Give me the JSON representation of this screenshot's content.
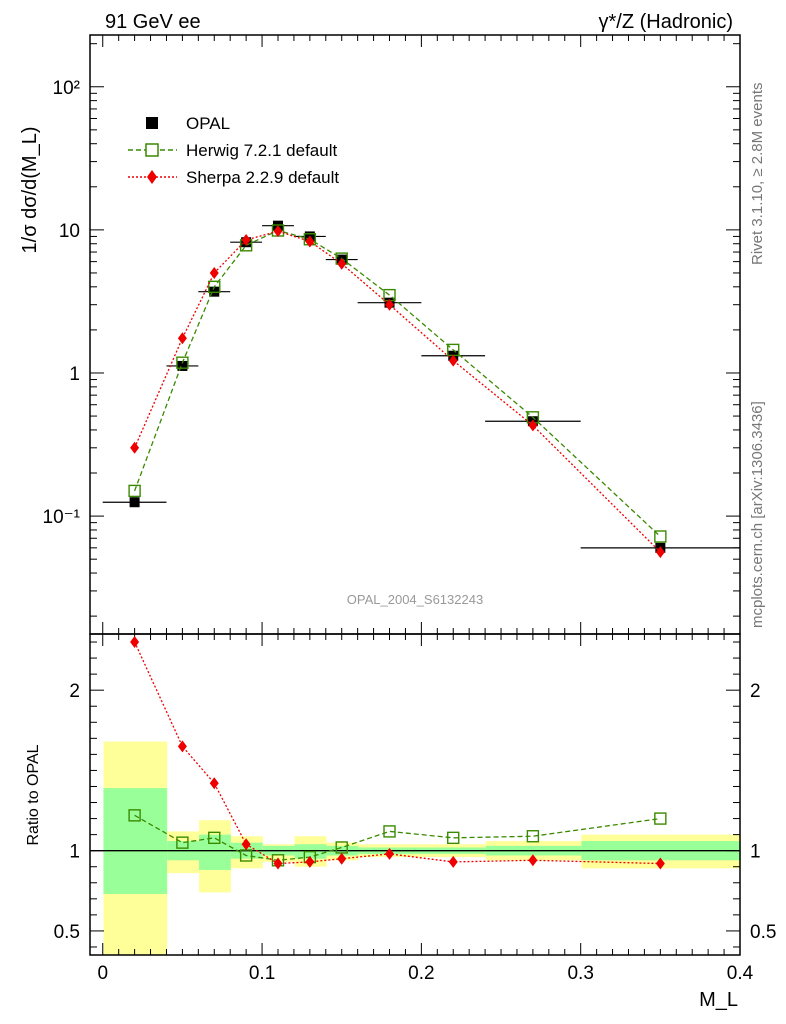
{
  "header": {
    "left": "91 GeV ee",
    "right": "γ*/Z (Hadronic)"
  },
  "side_labels": {
    "rivet": "Rivet 3.1.10, ≥ 2.8M events",
    "mcplots": "mcplots.cern.ch [arXiv:1306.3436]"
  },
  "watermark": "OPAL_2004_S6132243",
  "colors": {
    "data": "#000000",
    "herwig": "#3a8a00",
    "sherpa": "#ee0000",
    "band_inner": "#99ff99",
    "band_outer": "#ffff99"
  },
  "chart_data": [
    {
      "type": "line",
      "name": "main",
      "yscale": "log",
      "ylabel": "1/σ dσ/d(M_L)",
      "ylim": [
        0.015,
        230
      ],
      "xlim": [
        -0.008,
        0.4
      ],
      "ytick_labels": [
        "10⁻¹",
        "1",
        "10",
        "10²"
      ],
      "legend_position": "top-left",
      "legend": [
        {
          "key": "data",
          "label": "OPAL"
        },
        {
          "key": "herwig",
          "label": "Herwig 7.2.1 default"
        },
        {
          "key": "sherpa",
          "label": "Sherpa 2.2.9 default"
        }
      ],
      "data": {
        "name": "OPAL",
        "x": [
          0.02,
          0.05,
          0.07,
          0.09,
          0.11,
          0.13,
          0.15,
          0.18,
          0.22,
          0.27,
          0.35
        ],
        "xerr": [
          0.02,
          0.01,
          0.01,
          0.01,
          0.01,
          0.01,
          0.01,
          0.02,
          0.02,
          0.03,
          0.05
        ],
        "y": [
          0.125,
          1.12,
          3.7,
          8.2,
          10.7,
          9.0,
          6.2,
          3.1,
          1.32,
          0.46,
          0.06
        ]
      },
      "series": [
        {
          "name": "Herwig 7.2.1 default",
          "x": [
            0.02,
            0.05,
            0.07,
            0.09,
            0.11,
            0.13,
            0.15,
            0.18,
            0.22,
            0.27,
            0.35
          ],
          "y": [
            0.15,
            1.18,
            4.0,
            7.8,
            9.9,
            8.6,
            6.3,
            3.5,
            1.45,
            0.49,
            0.072
          ]
        },
        {
          "name": "Sherpa 2.2.9 default",
          "x": [
            0.02,
            0.05,
            0.07,
            0.09,
            0.11,
            0.13,
            0.15,
            0.18,
            0.22,
            0.27,
            0.35
          ],
          "y": [
            0.3,
            1.75,
            5.0,
            8.5,
            9.8,
            8.3,
            5.8,
            3.0,
            1.22,
            0.43,
            0.056
          ]
        }
      ]
    },
    {
      "type": "line",
      "name": "ratio",
      "ylabel": "Ratio to OPAL",
      "xlabel": "M_L",
      "ylim": [
        0.35,
        2.35
      ],
      "xlim": [
        -0.008,
        0.4
      ],
      "yticks": [
        0.5,
        1,
        2
      ],
      "xticks": [
        0,
        0.1,
        0.2,
        0.3,
        0.4
      ],
      "bands": [
        {
          "x0": 0.0,
          "x1": 0.04,
          "inner": [
            0.73,
            1.39
          ],
          "outer": [
            0.35,
            1.68
          ]
        },
        {
          "x0": 0.04,
          "x1": 0.06,
          "inner": [
            0.94,
            1.06
          ],
          "outer": [
            0.86,
            1.12
          ]
        },
        {
          "x0": 0.06,
          "x1": 0.08,
          "inner": [
            0.88,
            1.1
          ],
          "outer": [
            0.74,
            1.19
          ]
        },
        {
          "x0": 0.08,
          "x1": 0.1,
          "inner": [
            0.95,
            1.05
          ],
          "outer": [
            0.89,
            1.09
          ]
        },
        {
          "x0": 0.1,
          "x1": 0.12,
          "inner": [
            0.97,
            1.03
          ],
          "outer": [
            0.93,
            1.04
          ]
        },
        {
          "x0": 0.12,
          "x1": 0.14,
          "inner": [
            0.95,
            1.04
          ],
          "outer": [
            0.9,
            1.09
          ]
        },
        {
          "x0": 0.14,
          "x1": 0.16,
          "inner": [
            0.97,
            1.03
          ],
          "outer": [
            0.94,
            1.05
          ]
        },
        {
          "x0": 0.16,
          "x1": 0.2,
          "inner": [
            0.98,
            1.02
          ],
          "outer": [
            0.96,
            1.04
          ]
        },
        {
          "x0": 0.2,
          "x1": 0.24,
          "inner": [
            0.98,
            1.02
          ],
          "outer": [
            0.96,
            1.04
          ]
        },
        {
          "x0": 0.24,
          "x1": 0.3,
          "inner": [
            0.97,
            1.03
          ],
          "outer": [
            0.94,
            1.06
          ]
        },
        {
          "x0": 0.3,
          "x1": 0.4,
          "inner": [
            0.94,
            1.06
          ],
          "outer": [
            0.89,
            1.1
          ]
        }
      ],
      "series": [
        {
          "name": "Herwig 7.2.1 default",
          "x": [
            0.02,
            0.05,
            0.07,
            0.09,
            0.11,
            0.13,
            0.15,
            0.18,
            0.22,
            0.27,
            0.35
          ],
          "y": [
            1.22,
            1.05,
            1.08,
            0.97,
            0.94,
            0.96,
            1.02,
            1.12,
            1.08,
            1.09,
            1.2
          ]
        },
        {
          "name": "Sherpa 2.2.9 default",
          "x": [
            0.02,
            0.05,
            0.07,
            0.09,
            0.11,
            0.13,
            0.15,
            0.18,
            0.22,
            0.27,
            0.35
          ],
          "y": [
            2.3,
            1.65,
            1.42,
            1.04,
            0.92,
            0.93,
            0.95,
            0.98,
            0.93,
            0.94,
            0.92
          ]
        }
      ]
    }
  ]
}
